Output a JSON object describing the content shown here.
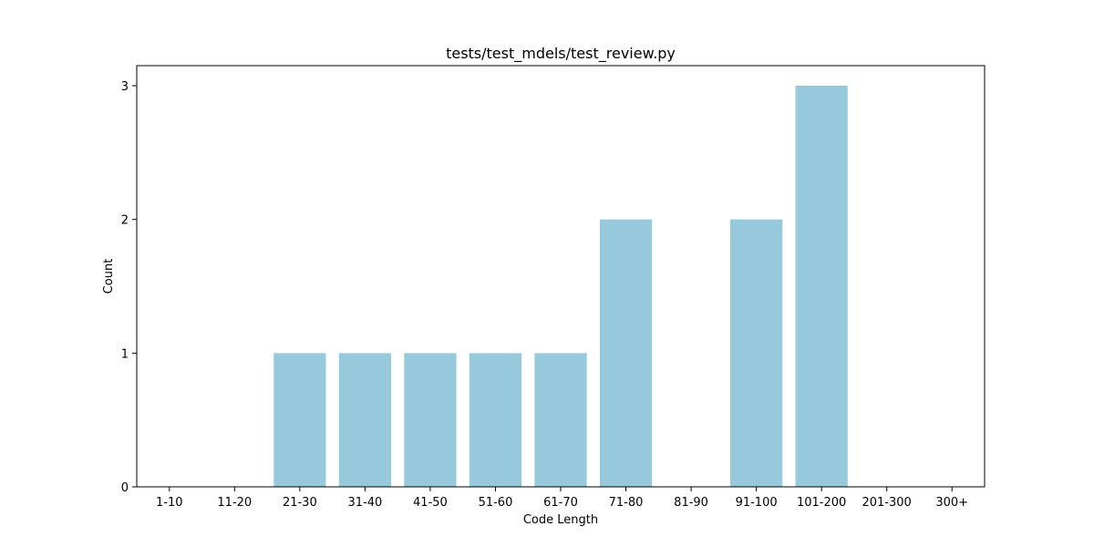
{
  "chart_data": {
    "type": "bar",
    "title": "tests/test_mdels/test_review.py",
    "xlabel": "Code Length",
    "ylabel": "Count",
    "categories": [
      "1-10",
      "11-20",
      "21-30",
      "31-40",
      "41-50",
      "51-60",
      "61-70",
      "71-80",
      "81-90",
      "91-100",
      "101-200",
      "201-300",
      "300+"
    ],
    "values": [
      0,
      0,
      1,
      1,
      1,
      1,
      1,
      2,
      0,
      2,
      3,
      0,
      0
    ],
    "ylim": [
      0,
      3.15
    ],
    "yticks": [
      0,
      1,
      2,
      3
    ],
    "grid": false,
    "bar_color": "#96c9dc"
  }
}
